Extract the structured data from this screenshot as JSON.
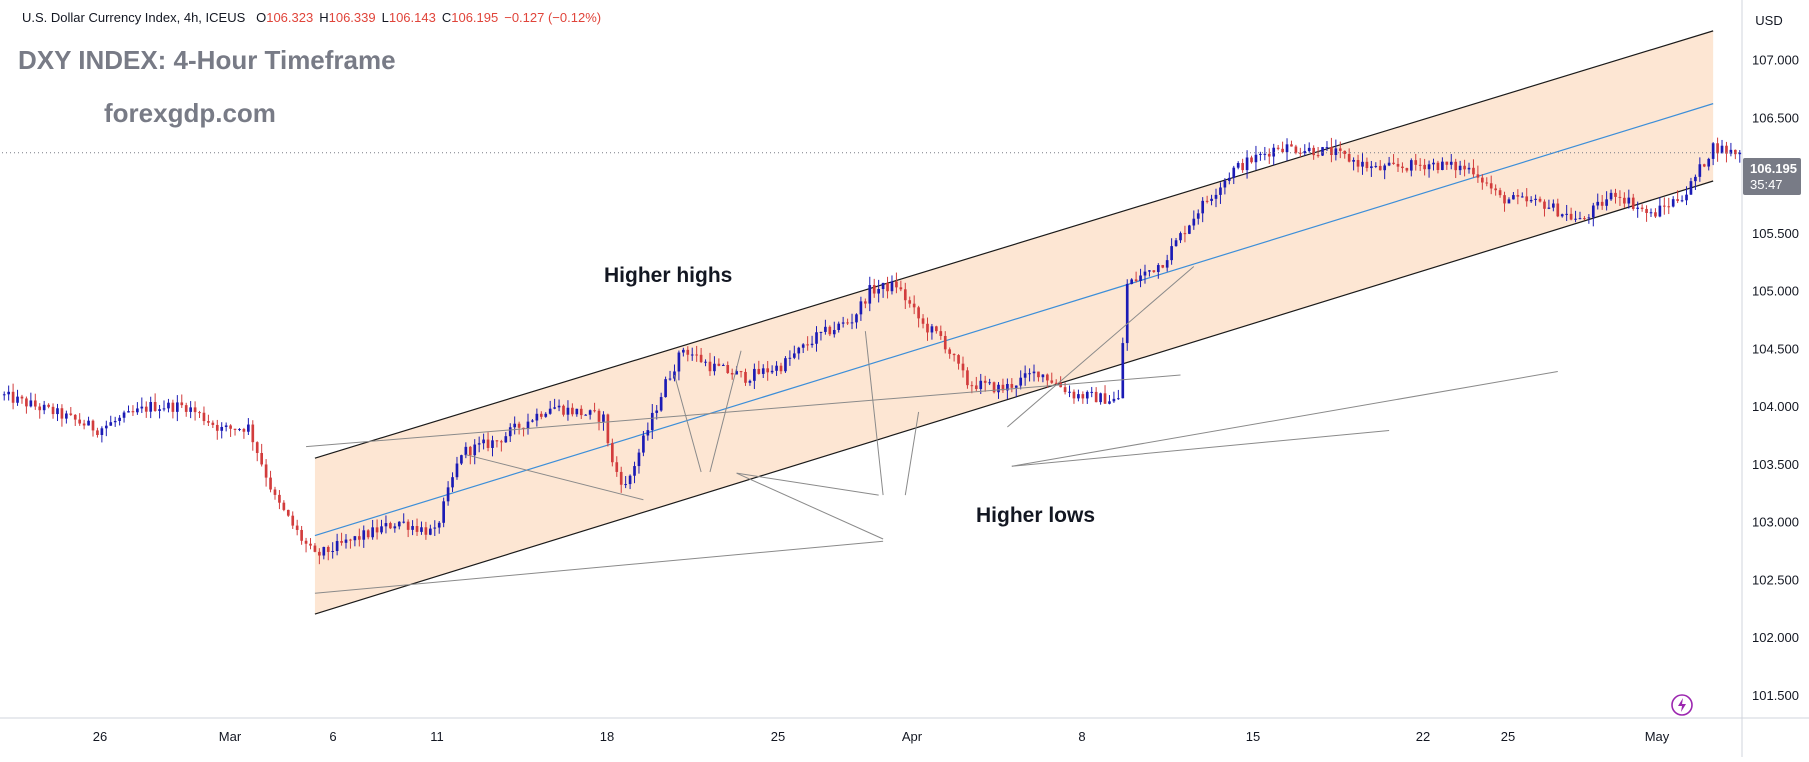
{
  "header": {
    "symbol_desc": "U.S. Dollar Currency Index, 4h, ICEUS",
    "open_label": "O",
    "open": "106.323",
    "high_label": "H",
    "high": "106.339",
    "low_label": "L",
    "low": "106.143",
    "close_label": "C",
    "close": "106.195",
    "change": "−0.127 (−0.12%)"
  },
  "title": "DXY INDEX: 4-Hour Timeframe",
  "watermark": "forexgdp.com",
  "currency": "USD",
  "price_tag": {
    "price": "106.195",
    "countdown": "35:47"
  },
  "colors": {
    "up": "#1b1bb5",
    "down": "#d23c3c",
    "channel_fill": "#fde0c8",
    "mid_line": "#3c8ed8",
    "channel_line": "#1a1a1a",
    "annot_line": "#8a8a8a"
  },
  "annotations": {
    "higher_highs": "Higher highs",
    "higher_lows": "Higher lows"
  },
  "chart_data": {
    "type": "candlestick",
    "ylim": [
      101.3,
      107.5
    ],
    "y_ticks": [
      "101.500",
      "102.000",
      "102.500",
      "103.000",
      "103.500",
      "104.000",
      "104.500",
      "105.000",
      "105.500",
      "106.000",
      "106.500",
      "107.000"
    ],
    "x_ticks": [
      "26",
      "Mar",
      "6",
      "11",
      "18",
      "25",
      "Apr",
      "8",
      "15",
      "22",
      "25",
      "May"
    ],
    "current_price": 106.195,
    "series_waypoints": [
      [
        0,
        104.1
      ],
      [
        12,
        103.95
      ],
      [
        22,
        103.8
      ],
      [
        34,
        104.0
      ],
      [
        42,
        104.0
      ],
      [
        50,
        103.8
      ],
      [
        56,
        103.82
      ],
      [
        62,
        103.2
      ],
      [
        68,
        102.85
      ],
      [
        71,
        102.7
      ],
      [
        80,
        102.85
      ],
      [
        90,
        103.0
      ],
      [
        98,
        102.9
      ],
      [
        104,
        103.6
      ],
      [
        112,
        103.7
      ],
      [
        124,
        104.0
      ],
      [
        136,
        103.9
      ],
      [
        138,
        103.5
      ],
      [
        141,
        103.3
      ],
      [
        144,
        103.6
      ],
      [
        150,
        104.2
      ],
      [
        154,
        104.5
      ],
      [
        160,
        104.35
      ],
      [
        168,
        104.25
      ],
      [
        176,
        104.35
      ],
      [
        184,
        104.6
      ],
      [
        192,
        104.75
      ],
      [
        196,
        105.0
      ],
      [
        202,
        105.05
      ],
      [
        208,
        104.7
      ],
      [
        212,
        104.6
      ],
      [
        218,
        104.2
      ],
      [
        226,
        104.15
      ],
      [
        234,
        104.3
      ],
      [
        242,
        104.1
      ],
      [
        252,
        104.05
      ],
      [
        254,
        105.05
      ],
      [
        262,
        105.25
      ],
      [
        270,
        105.7
      ],
      [
        278,
        106.05
      ],
      [
        288,
        106.25
      ],
      [
        300,
        106.2
      ],
      [
        310,
        106.05
      ],
      [
        322,
        106.1
      ],
      [
        332,
        106.05
      ],
      [
        338,
        105.8
      ],
      [
        348,
        105.75
      ],
      [
        356,
        105.6
      ],
      [
        364,
        105.85
      ],
      [
        372,
        105.65
      ],
      [
        380,
        105.85
      ],
      [
        386,
        106.25
      ],
      [
        390,
        106.2
      ]
    ],
    "channel": {
      "lower": {
        "from": [
          70,
          102.2
        ],
        "to": [
          385,
          105.95
        ]
      },
      "upper": {
        "from": [
          70,
          103.55
        ],
        "to": [
          385,
          107.25
        ]
      },
      "middle": {
        "from": [
          70,
          102.88
        ],
        "to": [
          385,
          106.62
        ]
      }
    }
  }
}
